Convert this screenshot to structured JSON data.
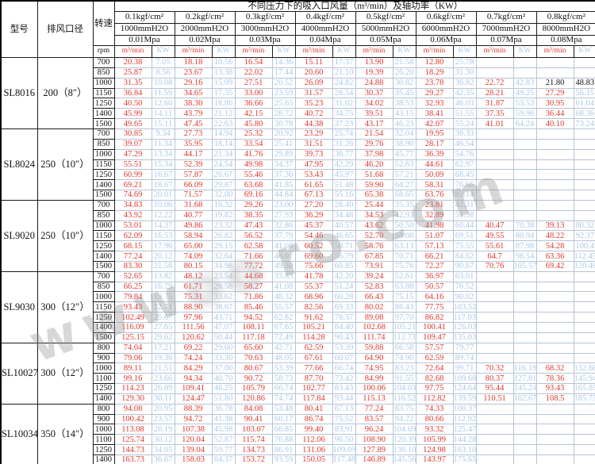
{
  "header": {
    "col_model": "型号",
    "col_diameter": "排风口径",
    "col_speed": "转速",
    "col_rpm": "rpm",
    "title": "不同压力下的吸入口风量（m³/min）及轴功率（KW）",
    "unit_flow": "m³/min",
    "unit_power": "KW",
    "pressures": [
      {
        "kgf": "0.1kgf/cm²",
        "mmh2o": "1000mmH2O",
        "mpa": "0.01Mpa"
      },
      {
        "kgf": "0.2kgf/cm²",
        "mmh2o": "2000mmH2O",
        "mpa": "0.02Mpa"
      },
      {
        "kgf": "0.3kgf/cm²",
        "mmh2o": "3000mmH2O",
        "mpa": "0.03Mpa"
      },
      {
        "kgf": "0.4kgf/cm²",
        "mmh2o": "4000mmH2O",
        "mpa": "0.04Mpa"
      },
      {
        "kgf": "0.5kgf/cm²",
        "mmh2o": "5000mmH2O",
        "mpa": "0.05Mpa"
      },
      {
        "kgf": "0.6kgf/cm²",
        "mmh2o": "6000mmH2O",
        "mpa": "0.06Mpa"
      },
      {
        "kgf": "0.7kgf/cm²",
        "mmh2o": "7000mmH2O",
        "mpa": "0.07Mpa"
      },
      {
        "kgf": "0.8kgf/cm²",
        "mmh2o": "8000mmH2O",
        "mpa": "0.08Mpa"
      }
    ]
  },
  "colors": {
    "flow_text": "#e0372e",
    "power_text": "#a9c9e9",
    "grid_light": "#b6c2d4",
    "grid_dark": "#1a1a1a"
  },
  "watermark": {
    "fragments": [
      "www",
      "ro.com"
    ]
  },
  "black_cells": [
    {
      "g": 0,
      "r": 2,
      "c": 14
    },
    {
      "g": 0,
      "r": 2,
      "c": 15
    }
  ],
  "groups": [
    {
      "model": "SL8016",
      "diameter": "200（8″）",
      "rows": [
        {
          "rpm": "700",
          "v": [
            "20.38",
            "7.05",
            "18.18",
            "10.56",
            "16.54",
            "14.36",
            "15.11",
            "17.37",
            "13.90",
            "21.58",
            "12.80",
            "25.78",
            "",
            "",
            "",
            ""
          ]
        },
        {
          "rpm": "850",
          "v": [
            "25.87",
            "8.56",
            "23.67",
            "13.38",
            "22.02",
            "17.44",
            "20.60",
            "21.10",
            "19.39",
            "26.20",
            "18.29",
            "31.30",
            "",
            "",
            "",
            ""
          ]
        },
        {
          "rpm": "1000",
          "v": [
            "31.35",
            "10.08",
            "29.16",
            "15.09",
            "27.51",
            "20.52",
            "26.09",
            "24.82",
            "24.88",
            "30.82",
            "23.78",
            "36.82",
            "22.72",
            "42.83",
            "21.80",
            "48.83"
          ]
        },
        {
          "rpm": "1150",
          "v": [
            "36.84",
            "11.59",
            "34.65",
            "17.35",
            "33.00",
            "23.59",
            "31.57",
            "28.54",
            "30.37",
            "35.45",
            "29.27",
            "42.35",
            "28.21",
            "49.25",
            "27.29",
            "56.15"
          ]
        },
        {
          "rpm": "1250",
          "v": [
            "40.50",
            "12.60",
            "38.30",
            "18.86",
            "36.66",
            "25.65",
            "35.23",
            "31.02",
            "34.02",
            "38.53",
            "32.93",
            "46.03",
            "31.87",
            "53.53",
            "30.95",
            "61.04"
          ]
        },
        {
          "rpm": "1400",
          "v": [
            "45.99",
            "14.11",
            "43.79",
            "21.12",
            "42.15",
            "28.72",
            "40.72",
            "34.75",
            "39.51",
            "43.15",
            "38.41",
            "51.55",
            "37.35",
            "59.96",
            "36.44",
            "68.36"
          ]
        },
        {
          "rpm": "1500",
          "v": [
            "49.65",
            "15.11",
            "47.45",
            "22.63",
            "45.80",
            "30.78",
            "44.38",
            "37.23",
            "43.17",
            "46.23",
            "42.07",
            "55.24",
            "41.01",
            "64.24",
            "40.10",
            "73.24"
          ]
        }
      ]
    },
    {
      "model": "SL8024",
      "diameter": "250（10″）",
      "rows": [
        {
          "rpm": "700",
          "v": [
            "30.85",
            "9.34",
            "27.73",
            "14.94",
            "25.32",
            "20.92",
            "23.29",
            "25.74",
            "21.54",
            "32.04",
            "19.95",
            "38.33",
            "",
            "",
            "",
            ""
          ]
        },
        {
          "rpm": "850",
          "v": [
            "39.07",
            "11.34",
            "35.95",
            "18.14",
            "33.54",
            "25.41",
            "31.51",
            "31.26",
            "29.76",
            "38.90",
            "28.17",
            "46.54",
            "",
            "",
            "",
            ""
          ]
        },
        {
          "rpm": "1000",
          "v": [
            "47.29",
            "13.34",
            "44.17",
            "21.34",
            "41.76",
            "29.89",
            "39.73",
            "36.77",
            "37.98",
            "45.77",
            "36.39",
            "54.76",
            "",
            "",
            "",
            ""
          ]
        },
        {
          "rpm": "1150",
          "v": [
            "55.51",
            "15.34",
            "52.39",
            "24.54",
            "49.98",
            "34.37",
            "47.95",
            "42.29",
            "46.20",
            "52.63",
            "44.61",
            "62.97",
            "",
            "",
            "",
            ""
          ]
        },
        {
          "rpm": "1250",
          "v": [
            "60.99",
            "16.67",
            "57.87",
            "26.67",
            "55.46",
            "37.36",
            "53.43",
            "45.97",
            "51.68",
            "57.21",
            "50.09",
            "68.45",
            "",
            "",
            "",
            ""
          ]
        },
        {
          "rpm": "1400",
          "v": [
            "69.21",
            "18.67",
            "66.09",
            "29.87",
            "63.68",
            "41.85",
            "61.65",
            "51.48",
            "59.90",
            "64.27",
            "58.31",
            "76.66",
            "",
            "",
            "",
            ""
          ]
        },
        {
          "rpm": "1500",
          "v": [
            "74.69",
            "20.01",
            "71.57",
            "32.00",
            "69.16",
            "44.84",
            "67.13",
            "55.16",
            "65.38",
            "68.65",
            "63.76",
            "82.14",
            "",
            "",
            "",
            ""
          ]
        }
      ]
    },
    {
      "model": "SL9020",
      "diameter": "250（10″）",
      "rows": [
        {
          "rpm": "700",
          "v": [
            "34.83",
            "10.06",
            "31.68",
            "16.32",
            "29.26",
            "23.00",
            "27.20",
            "28.40",
            "25.44",
            "35.35",
            "23.81",
            "42.31",
            "",
            "",
            "",
            ""
          ]
        },
        {
          "rpm": "850",
          "v": [
            "43.92",
            "12.22",
            "40.77",
            "19.82",
            "38.35",
            "27.93",
            "36.29",
            "34.48",
            "34.53",
            "42.93",
            "32.89",
            "51.38",
            "",
            "",
            "",
            ""
          ]
        },
        {
          "rpm": "1000",
          "v": [
            "53.01",
            "14.37",
            "49.86",
            "23.32",
            "47.43",
            "32.86",
            "45.37",
            "40.57",
            "43.62",
            "50.50",
            "41.98",
            "60.44",
            "40.47",
            "70.38",
            "39.13",
            "80.32"
          ]
        },
        {
          "rpm": "1150",
          "v": [
            "62.09",
            "16.53",
            "58.94",
            "26.82",
            "56.52",
            "37.79",
            "54.46",
            "46.65",
            "52.70",
            "58.08",
            "51.07",
            "69.51",
            "49.55",
            "80.94",
            "48.22",
            "92.37"
          ]
        },
        {
          "rpm": "1250",
          "v": [
            "68.15",
            "17.96",
            "65.00",
            "29.15",
            "62.58",
            "41.08",
            "60.52",
            "50.71",
            "58.76",
            "63.13",
            "57.13",
            "75.55",
            "55.61",
            "87.98",
            "54.28",
            "100.4"
          ]
        },
        {
          "rpm": "1400",
          "v": [
            "77.24",
            "20.12",
            "74.09",
            "32.64",
            "71.66",
            "46.01",
            "69.60",
            "56.79",
            "67.85",
            "70.71",
            "66.21",
            "84.62",
            "64.7",
            "98.54",
            "63.36",
            "112.45"
          ]
        },
        {
          "rpm": "1500",
          "v": [
            "83.30",
            "21.56",
            "80.15",
            "34.98",
            "77.72",
            "49.30",
            "75.66",
            "60.85",
            "73.91",
            "75.76",
            "72.27",
            "90.67",
            "70.76",
            "105.57",
            "69.42",
            "120.48"
          ]
        }
      ]
    },
    {
      "model": "SL9030",
      "diameter": "300（12″）",
      "rows": [
        {
          "rpm": "700",
          "v": [
            "52.65",
            "13.82",
            "48.12",
            "23.54",
            "44.68",
            "33.83",
            "41.78",
            "42.20",
            "39.24",
            "52.61",
            "36.97",
            "63.01",
            "",
            "",
            "",
            ""
          ]
        },
        {
          "rpm": "850",
          "v": [
            "66.25",
            "16.79",
            "61.71",
            "28.58",
            "58.27",
            "41.08",
            "55.37",
            "51.24",
            "52.83",
            "63.88",
            "50.57",
            "76.52",
            "",
            "",
            "",
            ""
          ]
        },
        {
          "rpm": "1000",
          "v": [
            "79.84",
            "19.75",
            "75.31",
            "33.62",
            "71.86",
            "48.32",
            "68.96",
            "60.28",
            "66.43",
            "75.15",
            "64.16",
            "90.02",
            "",
            "",
            "",
            ""
          ]
        },
        {
          "rpm": "1150",
          "v": [
            "93.43",
            "22.71",
            "88.90",
            "38.67",
            "85.46",
            "55.57",
            "82.56",
            "69.33",
            "80.02",
            "86.43",
            "77.75",
            "103.52",
            "",
            "",
            "",
            ""
          ]
        },
        {
          "rpm": "1250",
          "v": [
            "102.49",
            "25.67",
            "97.96",
            "43.71",
            "94.52",
            "62.82",
            "91.62",
            "78.37",
            "89.08",
            "97.70",
            "86.82",
            "117.03",
            "",
            "",
            "",
            ""
          ]
        },
        {
          "rpm": "1400",
          "v": [
            "116.09",
            "27.65",
            "111.56",
            "47.07",
            "108.11",
            "67.65",
            "105.21",
            "84.40",
            "102.68",
            "105.21",
            "100.41",
            "126.03",
            "",
            "",
            "",
            ""
          ]
        },
        {
          "rpm": "1500",
          "v": [
            "125.15",
            "29.62",
            "120.62",
            "50.44",
            "117.18",
            "72.49",
            "114.28",
            "90.43",
            "111.74",
            "112.73",
            "109.47",
            "135.03",
            "",
            "",
            "",
            ""
          ]
        }
      ]
    },
    {
      "model": "SL10027",
      "diameter": "300（12″）",
      "rows": [
        {
          "rpm": "800",
          "v": [
            "74.04",
            "17.21",
            "69.22",
            "29.60",
            "65.60",
            "42.71",
            "62.59",
            "53.39",
            "59.88",
            "66.58",
            "57.57",
            "79.77",
            "",
            "",
            "",
            ""
          ]
        },
        {
          "rpm": "900",
          "v": [
            "79.06",
            "19.36",
            "74.24",
            "33.30",
            "70.63",
            "48.05",
            "67.61",
            "60.07",
            "64.90",
            "74.90",
            "62.59",
            "89.74",
            "",
            "",
            "",
            ""
          ]
        },
        {
          "rpm": "1000",
          "v": [
            "89.11",
            "21.51",
            "84.29",
            "37.00",
            "80.67",
            "53.39",
            "77.66",
            "66.74",
            "74.95",
            "83.23",
            "72.64",
            "99.71",
            "70.32",
            "116.19",
            "68.32",
            "132.68"
          ]
        },
        {
          "rpm": "1100",
          "v": [
            "99.16",
            "23.66",
            "94.34",
            "40.70",
            "90.72",
            "58.73",
            "87.70",
            "73.42",
            "84.99",
            "91.55",
            "82.68",
            "109.68",
            "80.37",
            "127.81",
            "78.36",
            "145.94"
          ]
        },
        {
          "rpm": "1250",
          "v": [
            "114.23",
            "26.89",
            "109.41",
            "46.25",
            "105.79",
            "66.74",
            "102.77",
            "83.43",
            "100.06",
            "104.03",
            "97.75",
            "124.64",
            "95.44",
            "145.24",
            "93.43",
            "165.85"
          ]
        },
        {
          "rpm": "1400",
          "v": [
            "129.30",
            "30.11",
            "124.47",
            "51.80",
            "120.86",
            "74.74",
            "117.84",
            "93.44",
            "115.13",
            "116.52",
            "112.82",
            "139.59",
            "110.51",
            "162.67",
            "108.5",
            "185.75"
          ]
        }
      ]
    },
    {
      "model": "SL10034",
      "diameter": "350（14″）",
      "rows": [
        {
          "rpm": "800",
          "v": [
            "94.08",
            "20.95",
            "88.39",
            "36.78",
            "84.08",
            "53.48",
            "80.41",
            "67.13",
            "77.24",
            "83.75",
            "74.33",
            "100.37",
            "",
            "",
            "",
            ""
          ]
        },
        {
          "rpm": "900",
          "v": [
            "100.42",
            "23.57",
            "94.72",
            "41.38",
            "90.41",
            "60.17",
            "86.74",
            "75.52",
            "83.57",
            "94.22",
            "80.66",
            "112.92",
            "",
            "",
            "",
            ""
          ]
        },
        {
          "rpm": "1000",
          "v": [
            "113.08",
            "26.19",
            "107.38",
            "45.98",
            "103.07",
            "66.85",
            "99.40",
            "83.91",
            "96.24",
            "104.69",
            "93.32",
            "125.47",
            "",
            "",
            "",
            ""
          ]
        },
        {
          "rpm": "1100",
          "v": [
            "125.74",
            "30.12",
            "120.04",
            "52.87",
            "115.74",
            "76.88",
            "112.06",
            "96.50",
            "108.90",
            "120.39",
            "105.99",
            "144.28",
            "",
            "",
            "",
            ""
          ]
        },
        {
          "rpm": "1250",
          "v": [
            "144.73",
            "34.05",
            "139.04",
            "59.77",
            "134.73",
            "86.91",
            "131.06",
            "109.09",
            "127.89",
            "136.10",
            "124.98",
            "163.10",
            "",
            "",
            "",
            ""
          ]
        },
        {
          "rpm": "1400",
          "v": [
            "163.73",
            "36.67",
            "158.03",
            "64.37",
            "153.72",
            "93.59",
            "150.05",
            "117.48",
            "146.89",
            "145.56",
            "143.97",
            "175.65",
            "",
            "",
            "",
            ""
          ]
        }
      ]
    }
  ]
}
